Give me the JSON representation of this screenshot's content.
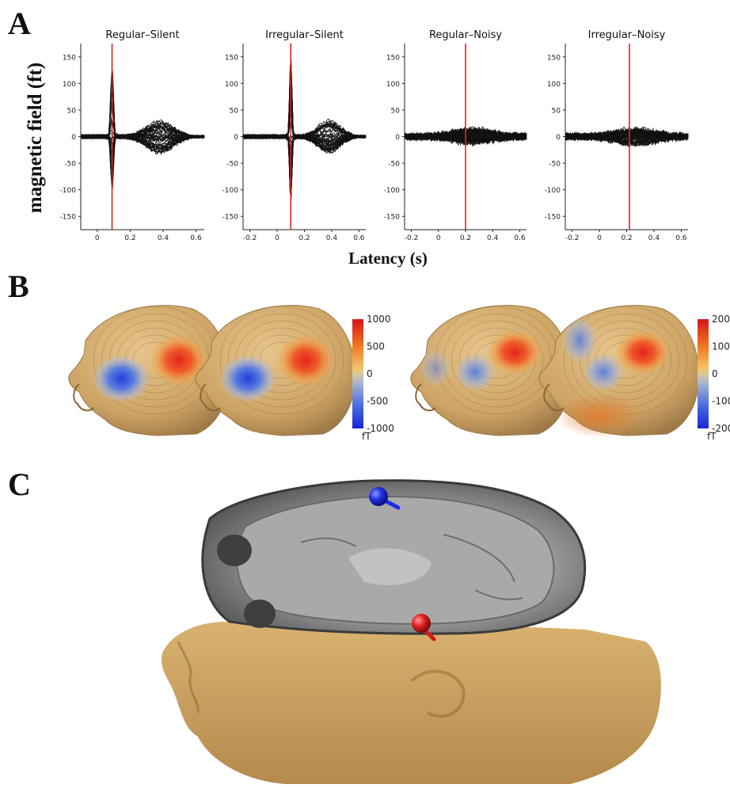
{
  "figure": {
    "panel_a_label": "A",
    "panel_b_label": "B",
    "panel_c_label": "C",
    "ylabel": "magnetic field (ft)",
    "xlabel": "Latency (s)",
    "colorbar_left": {
      "ticks": [
        "1000",
        "500",
        "0",
        "-500",
        "-1000"
      ],
      "unit": "fT",
      "values": [
        1000,
        500,
        0,
        -500,
        -1000
      ]
    },
    "colorbar_right": {
      "ticks": [
        "200",
        "100",
        "0",
        "-100",
        "-200"
      ],
      "unit": "fT",
      "values": [
        200,
        100,
        0,
        -100,
        -200
      ]
    }
  },
  "chart_data": [
    {
      "type": "line",
      "title": "Regular–Silent",
      "xlim": [
        -0.1,
        0.65
      ],
      "ylim": [
        -175,
        175
      ],
      "xticks": [
        0,
        0.2,
        0.4,
        0.6
      ],
      "xtick_labels": [
        "0",
        "0.2",
        "0.4",
        "0.6"
      ],
      "yticks": [
        150,
        100,
        50,
        0,
        -50,
        -100,
        -150
      ],
      "ytick_labels": [
        "150",
        "100",
        "50",
        "0",
        "-50",
        "-100",
        "-150"
      ],
      "marker_latency": 0.09,
      "peak_pos": 140,
      "peak_neg": -105
    },
    {
      "type": "line",
      "title": "Irregular–Silent",
      "xlim": [
        -0.25,
        0.65
      ],
      "ylim": [
        -175,
        175
      ],
      "xticks": [
        -0.2,
        0,
        0.2,
        0.4,
        0.6
      ],
      "xtick_labels": [
        "-0.2",
        "0",
        "0.2",
        "0.4",
        "0.6"
      ],
      "yticks": [
        150,
        100,
        50,
        0,
        -50,
        -100,
        -150
      ],
      "ytick_labels": [
        "150",
        "100",
        "50",
        "0",
        "-50",
        "-100",
        "-150"
      ],
      "marker_latency": 0.1,
      "peak_pos": 160,
      "peak_neg": -120
    },
    {
      "type": "line",
      "title": "Regular–Noisy",
      "xlim": [
        -0.25,
        0.65
      ],
      "ylim": [
        -175,
        175
      ],
      "xticks": [
        -0.2,
        0,
        0.2,
        0.4,
        0.6
      ],
      "xtick_labels": [
        "-0.2",
        "0",
        "0.2",
        "0.4",
        "0.6"
      ],
      "yticks": [
        150,
        100,
        50,
        0,
        -50,
        -100,
        -150
      ],
      "ytick_labels": [
        "150",
        "100",
        "50",
        "0",
        "-50",
        "-100",
        "-150"
      ],
      "marker_latency": 0.2,
      "peak_pos": 22,
      "peak_neg": -15
    },
    {
      "type": "line",
      "title": "Irregular–Noisy",
      "xlim": [
        -0.25,
        0.65
      ],
      "ylim": [
        -175,
        175
      ],
      "xticks": [
        -0.2,
        0,
        0.2,
        0.4,
        0.6
      ],
      "xtick_labels": [
        "-0.2",
        "0",
        "0.2",
        "0.4",
        "0.6"
      ],
      "yticks": [
        150,
        100,
        50,
        0,
        -50,
        -100,
        -150
      ],
      "ytick_labels": [
        "150",
        "100",
        "50",
        "0",
        "-50",
        "-100",
        "-150"
      ],
      "marker_latency": 0.22,
      "peak_pos": 24,
      "peak_neg": -18
    }
  ],
  "colors": {
    "marker": "#e0241b",
    "trace": "#111111",
    "skin": "#d4ab6e",
    "dipole_neg": "#1a2fd6",
    "dipole_pos": "#e02020"
  }
}
